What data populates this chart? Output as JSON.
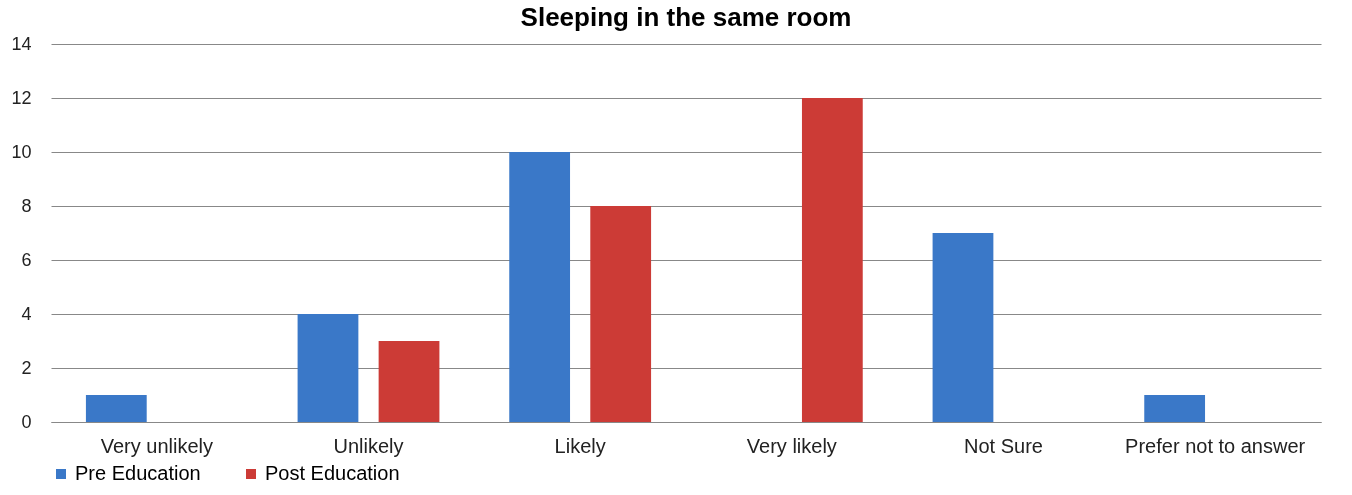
{
  "chart_data": {
    "type": "bar",
    "title": "Sleeping in the same room",
    "categories": [
      "Very unlikely",
      "Unlikely",
      "Likely",
      "Very likely",
      "Not Sure",
      "Prefer not to answer"
    ],
    "series": [
      {
        "name": "Pre Education",
        "color": "#3a78c8",
        "values": [
          1,
          4,
          10,
          null,
          7,
          1
        ]
      },
      {
        "name": "Post Education",
        "color": "#cc3b36",
        "values": [
          null,
          3,
          8,
          12,
          null,
          null
        ]
      }
    ],
    "ylim": [
      0,
      14
    ],
    "yticks": [
      0,
      2,
      4,
      6,
      8,
      10,
      12,
      14
    ],
    "grid": "y",
    "legend": "bottom"
  }
}
